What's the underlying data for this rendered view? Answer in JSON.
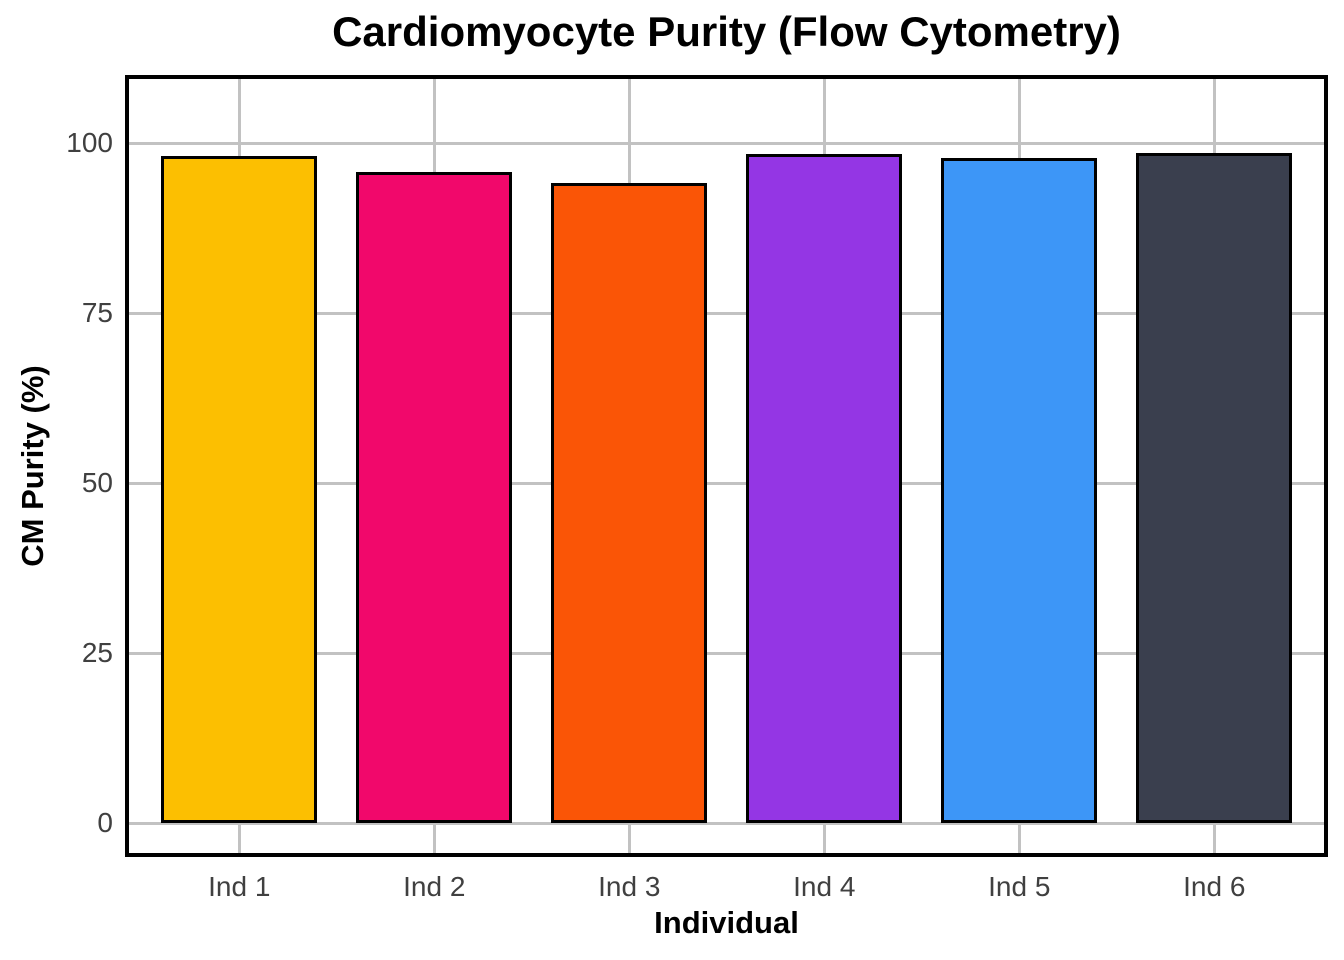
{
  "chart_data": {
    "type": "bar",
    "title": "Cardiomyocyte Purity (Flow Cytometry)",
    "xlabel": "Individual",
    "ylabel": "CM Purity (%)",
    "categories": [
      "Ind 1",
      "Ind 2",
      "Ind 3",
      "Ind 4",
      "Ind 5",
      "Ind 6"
    ],
    "values": [
      98.2,
      95.8,
      94.2,
      98.4,
      97.9,
      98.6
    ],
    "bar_colors": [
      "#FCBF01",
      "#F1086B",
      "#FA5506",
      "#9436E4",
      "#3D96F7",
      "#3A3F4E"
    ],
    "bar_outline_color": "#000000",
    "yticks": [
      0,
      25,
      50,
      75,
      100
    ],
    "ylim": [
      -5,
      110
    ],
    "grid": true,
    "grid_color": "#C2C2C2",
    "axis_text_color": "#404040",
    "panel_border_color": "#000000",
    "legend_position": "none"
  }
}
